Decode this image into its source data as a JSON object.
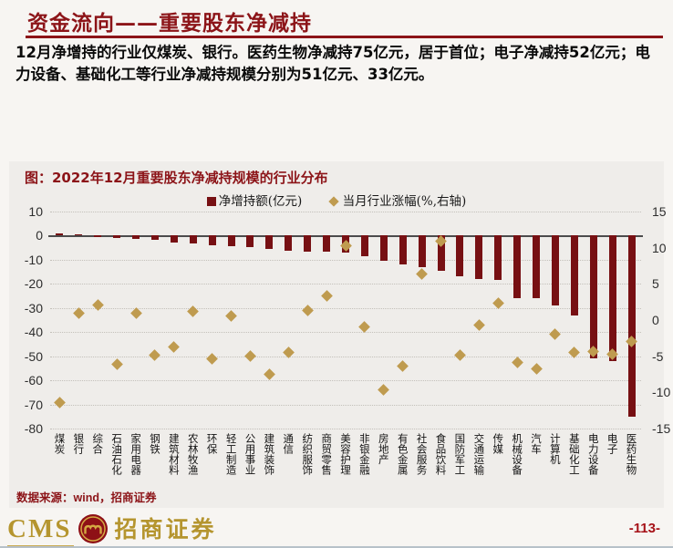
{
  "page": {
    "title": "资金流向——重要股东净减持",
    "intro": "12月净增持的行业仅煤炭、银行。医药生物净减持75亿元，居于首位；电子净减持52亿元；电力设备、基础化工等行业净减持规模分别为51亿元、33亿元。"
  },
  "panel": {
    "title": "图：2022年12月重要股东净减持规模的行业分布",
    "legend": [
      {
        "label": "净增持额(亿元)",
        "marker": "square",
        "color": "#771013"
      },
      {
        "label": "当月行业涨幅(%,右轴)",
        "marker": "diamond",
        "color": "#bf9b4f"
      }
    ],
    "source": "数据来源：wind，招商证券"
  },
  "chart_data": {
    "type": "bar",
    "title": "2022年12月重要股东净减持规模的行业分布",
    "categories": [
      "煤炭",
      "银行",
      "综合",
      "石油石化",
      "家用电器",
      "钢铁",
      "建筑材料",
      "农林牧渔",
      "环保",
      "轻工制造",
      "公用事业",
      "建筑装饰",
      "通信",
      "纺织服饰",
      "商贸零售",
      "美容护理",
      "非银金融",
      "房地产",
      "有色金属",
      "社会服务",
      "食品饮料",
      "国防军工",
      "交通运输",
      "传媒",
      "机械设备",
      "汽车",
      "计算机",
      "基础化工",
      "电力设备",
      "电子",
      "医药生物"
    ],
    "series": [
      {
        "name": "净增持额(亿元)",
        "type": "bar",
        "axis": "left",
        "values": [
          1,
          0.5,
          -0.6,
          -1,
          -1.3,
          -1.6,
          -3,
          -3.2,
          -4,
          -4.3,
          -4.8,
          -5.5,
          -6.2,
          -6.5,
          -6.8,
          -7,
          -8.6,
          -10.5,
          -12,
          -13,
          -14.5,
          -17,
          -18,
          -18.5,
          -26,
          -26,
          -29,
          -33,
          -51,
          -52,
          -75
        ]
      },
      {
        "name": "当月行业涨幅(%,右轴)",
        "type": "scatter",
        "axis": "right",
        "values": [
          -11.4,
          0.9,
          2.1,
          -6.1,
          0.9,
          -4.9,
          -3.7,
          1.2,
          -5.4,
          0.6,
          -5,
          -7.5,
          -4.5,
          1.3,
          3.4,
          10.3,
          -0.9,
          -9.6,
          -6.4,
          6.4,
          10.9,
          -4.9,
          -0.7,
          2.3,
          -5.8,
          -6.8,
          -1.9,
          -4.5,
          -4.3,
          -4.7,
          -2.9
        ]
      }
    ],
    "left_axis": {
      "ticks": [
        10,
        0,
        -10,
        -20,
        -30,
        -40,
        -50,
        -60,
        -70,
        -80
      ],
      "range": [
        10,
        -80
      ]
    },
    "right_axis": {
      "ticks": [
        15,
        10,
        5,
        0,
        -5,
        -10,
        -15
      ],
      "range": [
        15,
        -15
      ]
    },
    "grid": "horizontal dotted",
    "legend_position": "top"
  },
  "footer": {
    "logo_text": "CMS",
    "company": "招商证券",
    "page_number": "-113-"
  },
  "colors": {
    "accent_red": "#8c1418",
    "bar": "#771013",
    "diamond": "#bf9b4f",
    "logo_gold": "#b5952f",
    "panel_bg": "#efedea",
    "page_bg": "#f7f5f2"
  }
}
